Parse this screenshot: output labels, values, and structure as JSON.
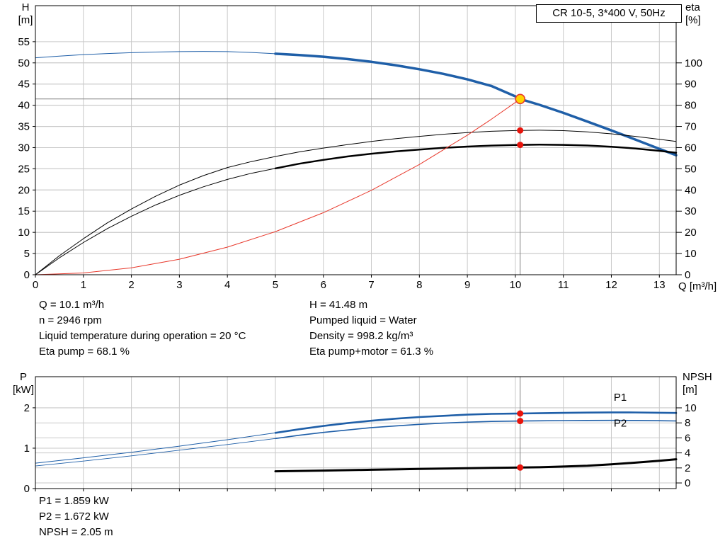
{
  "title_box": {
    "label": "CR 10-5, 3*400 V, 50Hz"
  },
  "axis_labels": {
    "top_left_1": "H",
    "top_left_2": "[m]",
    "top_right_1": "eta",
    "top_right_2": "[%]",
    "x": "Q [m³/h]",
    "bottom_left_1": "P",
    "bottom_left_2": "[kW]",
    "bottom_right_1": "NPSH",
    "bottom_right_2": "[m]"
  },
  "info_panel": {
    "left": [
      "Q = 10.1 m³/h",
      "n = 2946 rpm",
      "Liquid temperature during operation = 20 °C",
      "Eta pump = 68.1 %"
    ],
    "right": [
      "H = 41.48 m",
      "Pumped liquid = Water",
      "Density = 998.2 kg/m³",
      "Eta pump+motor = 61.3 %"
    ]
  },
  "results_panel": [
    "P1 = 1.859 kW",
    "P2 = 1.672 kW",
    "NPSH = 2.05 m"
  ],
  "colors": {
    "curve_blue": "#1f5fa8",
    "curve_black": "#000000",
    "curve_red": "#e8392c",
    "marker_red": "#e8140c",
    "duty_fill": "#ffd400",
    "crosshair_gray": "#808080",
    "grid": "#c9c9c9"
  },
  "chart_data": [
    {
      "type": "line",
      "title": "CR 10-5, 3*400 V, 50Hz",
      "x_axis": {
        "label": "Q [m³/h]",
        "min": 0,
        "max": 13.35,
        "ticks": [
          0,
          1,
          2,
          3,
          4,
          5,
          6,
          7,
          8,
          9,
          10,
          11,
          12,
          13
        ]
      },
      "y_left": {
        "label": "H [m]",
        "min": 0,
        "max": 63.5,
        "ticks": [
          0,
          5,
          10,
          15,
          20,
          25,
          30,
          35,
          40,
          45,
          50,
          55
        ]
      },
      "y_right": {
        "label": "eta [%]",
        "min": 0,
        "max": 127,
        "ticks": [
          0,
          10,
          20,
          30,
          40,
          50,
          60,
          70,
          80,
          90,
          100
        ]
      },
      "crosshair": {
        "q": 10.1,
        "v": 41.48,
        "axis": "left"
      },
      "duty_point": {
        "q": 10.1,
        "v": 41.48
      },
      "series": [
        {
          "name": "pump-curve-thin",
          "axis": "left",
          "color": "#1f5fa8",
          "width": 1,
          "points": [
            [
              0,
              51.2
            ],
            [
              0.5,
              51.6
            ],
            [
              1,
              51.95
            ],
            [
              1.5,
              52.2
            ],
            [
              2,
              52.4
            ],
            [
              2.5,
              52.55
            ],
            [
              3,
              52.65
            ],
            [
              3.5,
              52.7
            ],
            [
              4,
              52.65
            ],
            [
              4.5,
              52.45
            ],
            [
              5,
              52.15
            ]
          ]
        },
        {
          "name": "pump-curve",
          "axis": "left",
          "color": "#1f5fa8",
          "width": 3.5,
          "points": [
            [
              5,
              52.15
            ],
            [
              5.5,
              51.85
            ],
            [
              6,
              51.45
            ],
            [
              6.5,
              50.9
            ],
            [
              7,
              50.25
            ],
            [
              7.5,
              49.45
            ],
            [
              8,
              48.5
            ],
            [
              8.5,
              47.4
            ],
            [
              9,
              46.1
            ],
            [
              9.5,
              44.55
            ],
            [
              10,
              42.1
            ],
            [
              10.1,
              41.48
            ],
            [
              10.5,
              40.1
            ],
            [
              11,
              38.2
            ],
            [
              11.5,
              36.15
            ],
            [
              12,
              34.05
            ],
            [
              12.5,
              31.9
            ],
            [
              13,
              29.7
            ],
            [
              13.35,
              28.2
            ]
          ]
        },
        {
          "name": "eta-pump-curve",
          "axis": "right",
          "color": "#000000",
          "width": 1,
          "points": [
            [
              0,
              0
            ],
            [
              0.5,
              9
            ],
            [
              1,
              17
            ],
            [
              1.5,
              24.5
            ],
            [
              2,
              31
            ],
            [
              2.5,
              37
            ],
            [
              3,
              42.3
            ],
            [
              3.5,
              46.8
            ],
            [
              4,
              50.6
            ],
            [
              4.5,
              53.4
            ],
            [
              5,
              55.8
            ],
            [
              5.5,
              58
            ],
            [
              6,
              59.8
            ],
            [
              6.5,
              61.4
            ],
            [
              7,
              62.9
            ],
            [
              7.5,
              64.2
            ],
            [
              8,
              65.3
            ],
            [
              8.5,
              66.3
            ],
            [
              9,
              67.1
            ],
            [
              9.5,
              67.7
            ],
            [
              10,
              68.05
            ],
            [
              10.1,
              68.1
            ],
            [
              10.5,
              68.2
            ],
            [
              11,
              68
            ],
            [
              11.5,
              67.4
            ],
            [
              12,
              66.5
            ],
            [
              12.5,
              65.3
            ],
            [
              13,
              63.9
            ],
            [
              13.35,
              62.9
            ]
          ]
        },
        {
          "name": "eta-pump-motor-curve-thin",
          "axis": "right",
          "color": "#000000",
          "width": 1,
          "points": [
            [
              0,
              0
            ],
            [
              0.5,
              8
            ],
            [
              1,
              15.2
            ],
            [
              1.5,
              21.8
            ],
            [
              2,
              27.6
            ],
            [
              2.5,
              32.9
            ],
            [
              3,
              37.5
            ],
            [
              3.5,
              41.5
            ],
            [
              4,
              45
            ],
            [
              4.5,
              47.9
            ],
            [
              5,
              50.2
            ]
          ]
        },
        {
          "name": "eta-pump-motor-curve",
          "axis": "right",
          "color": "#000000",
          "width": 2.5,
          "points": [
            [
              5,
              50.2
            ],
            [
              5.5,
              52.4
            ],
            [
              6,
              54.2
            ],
            [
              6.5,
              55.8
            ],
            [
              7,
              57.1
            ],
            [
              7.5,
              58.2
            ],
            [
              8,
              59.1
            ],
            [
              8.5,
              59.9
            ],
            [
              9,
              60.5
            ],
            [
              9.5,
              60.95
            ],
            [
              10,
              61.25
            ],
            [
              10.1,
              61.3
            ],
            [
              10.5,
              61.4
            ],
            [
              11,
              61.3
            ],
            [
              11.5,
              61
            ],
            [
              12,
              60.4
            ],
            [
              12.5,
              59.6
            ],
            [
              13,
              58.5
            ],
            [
              13.35,
              57.6
            ]
          ]
        },
        {
          "name": "system-curve",
          "axis": "left",
          "color": "#e8392c",
          "width": 1,
          "points": [
            [
              0,
              0
            ],
            [
              1,
              0.41
            ],
            [
              2,
              1.63
            ],
            [
              3,
              3.66
            ],
            [
              4,
              6.51
            ],
            [
              5,
              10.17
            ],
            [
              6,
              14.64
            ],
            [
              7,
              19.92
            ],
            [
              8,
              26.02
            ],
            [
              9,
              32.93
            ],
            [
              9.5,
              36.7
            ],
            [
              10,
              40.66
            ],
            [
              10.1,
              41.48
            ]
          ]
        }
      ],
      "markers": [
        {
          "name": "eta-pump-duty-marker",
          "q": 10.1,
          "v": 68.1,
          "axis": "right"
        },
        {
          "name": "eta-pump-motor-duty-marker",
          "q": 10.1,
          "v": 61.3,
          "axis": "right"
        }
      ]
    },
    {
      "type": "line",
      "x_axis": {
        "min": 0,
        "max": 13.35,
        "ticks": [
          0,
          1,
          2,
          3,
          4,
          5,
          6,
          7,
          8,
          9,
          10,
          11,
          12,
          13
        ]
      },
      "y_left": {
        "label": "P [kW]",
        "min": 0,
        "max": 2.77,
        "ticks": [
          0,
          1,
          2
        ]
      },
      "y_right": {
        "label": "NPSH [m]",
        "min": -0.75,
        "max": 14.15,
        "ticks": [
          0,
          2,
          4,
          6,
          8,
          10
        ]
      },
      "vline": 10.1,
      "series": [
        {
          "name": "p1-curve-thin",
          "axis": "left",
          "color": "#1f5fa8",
          "width": 1,
          "points": [
            [
              0,
              0.63
            ],
            [
              1,
              0.76
            ],
            [
              2,
              0.9
            ],
            [
              3,
              1.05
            ],
            [
              4,
              1.21
            ],
            [
              5,
              1.38
            ]
          ]
        },
        {
          "name": "p1-curve",
          "axis": "left",
          "color": "#1f5fa8",
          "width": 2.6,
          "points": [
            [
              5,
              1.38
            ],
            [
              5.5,
              1.47
            ],
            [
              6,
              1.55
            ],
            [
              6.5,
              1.62
            ],
            [
              7,
              1.68
            ],
            [
              7.5,
              1.73
            ],
            [
              8,
              1.77
            ],
            [
              8.5,
              1.8
            ],
            [
              9,
              1.83
            ],
            [
              9.5,
              1.85
            ],
            [
              10,
              1.857
            ],
            [
              10.1,
              1.859
            ],
            [
              10.5,
              1.865
            ],
            [
              11,
              1.875
            ],
            [
              11.5,
              1.882
            ],
            [
              12,
              1.886
            ],
            [
              12.5,
              1.884
            ],
            [
              13,
              1.878
            ],
            [
              13.35,
              1.872
            ]
          ]
        },
        {
          "name": "p2-curve-thin",
          "axis": "left",
          "color": "#1f5fa8",
          "width": 0.9,
          "points": [
            [
              0,
              0.56
            ],
            [
              1,
              0.68
            ],
            [
              2,
              0.81
            ],
            [
              3,
              0.95
            ],
            [
              4,
              1.09
            ],
            [
              5,
              1.24
            ]
          ]
        },
        {
          "name": "p2-curve",
          "axis": "left",
          "color": "#1f5fa8",
          "width": 1.6,
          "points": [
            [
              5,
              1.24
            ],
            [
              5.5,
              1.32
            ],
            [
              6,
              1.39
            ],
            [
              6.5,
              1.45
            ],
            [
              7,
              1.51
            ],
            [
              7.5,
              1.55
            ],
            [
              8,
              1.59
            ],
            [
              8.5,
              1.62
            ],
            [
              9,
              1.645
            ],
            [
              9.5,
              1.662
            ],
            [
              10,
              1.67
            ],
            [
              10.1,
              1.672
            ],
            [
              10.5,
              1.677
            ],
            [
              11,
              1.683
            ],
            [
              11.5,
              1.687
            ],
            [
              12,
              1.688
            ],
            [
              12.5,
              1.686
            ],
            [
              13,
              1.68
            ],
            [
              13.35,
              1.675
            ]
          ]
        },
        {
          "name": "npsh-curve",
          "axis": "right",
          "color": "#000000",
          "width": 3,
          "points": [
            [
              5,
              1.55
            ],
            [
              5.5,
              1.6
            ],
            [
              6,
              1.65
            ],
            [
              6.5,
              1.7
            ],
            [
              7,
              1.76
            ],
            [
              7.5,
              1.81
            ],
            [
              8,
              1.86
            ],
            [
              8.5,
              1.91
            ],
            [
              9,
              1.96
            ],
            [
              9.5,
              2.0
            ],
            [
              10,
              2.04
            ],
            [
              10.1,
              2.05
            ],
            [
              10.5,
              2.09
            ],
            [
              11,
              2.18
            ],
            [
              11.5,
              2.3
            ],
            [
              12,
              2.48
            ],
            [
              12.5,
              2.7
            ],
            [
              13,
              2.95
            ],
            [
              13.35,
              3.15
            ]
          ]
        }
      ],
      "markers": [
        {
          "name": "p1-duty-marker",
          "q": 10.1,
          "v": 1.859,
          "axis": "left"
        },
        {
          "name": "p2-duty-marker",
          "q": 10.1,
          "v": 1.672,
          "axis": "left"
        },
        {
          "name": "npsh-duty-marker",
          "q": 10.1,
          "v": 2.05,
          "axis": "right"
        }
      ],
      "series_labels": [
        {
          "text": "P1",
          "q": 12.05,
          "v": 2.17,
          "axis": "left",
          "color": "#1f5fa8"
        },
        {
          "text": "P2",
          "q": 12.05,
          "v": 1.53,
          "axis": "left",
          "color": "#1f5fa8"
        }
      ]
    }
  ]
}
